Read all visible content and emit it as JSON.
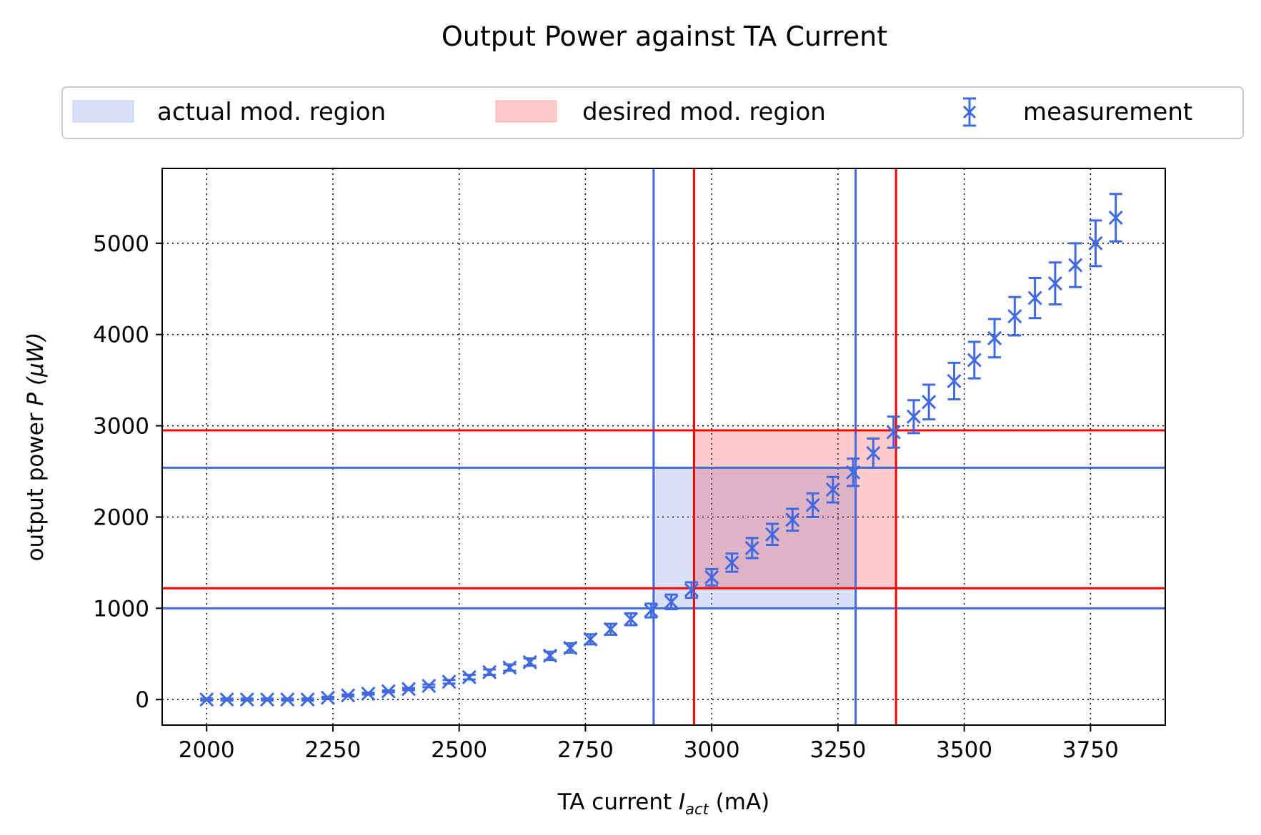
{
  "chart_data": {
    "type": "scatter",
    "title": "Output Power against TA Current",
    "xlabel_main": "TA current ",
    "xlabel_symbol": "I",
    "xlabel_subscript": "act",
    "xlabel_unit": " (mA)",
    "ylabel_main": "output power ",
    "ylabel_symbol": "P",
    "ylabel_unit": "(μW)",
    "xlim": [
      1912,
      3898
    ],
    "ylim": [
      -280,
      5820
    ],
    "xticks": [
      2000,
      2250,
      2500,
      2750,
      3000,
      3250,
      3500,
      3750
    ],
    "yticks": [
      0,
      1000,
      2000,
      3000,
      4000,
      5000
    ],
    "grid": true,
    "grid_style": "dotted",
    "legend_position": "top, above plot",
    "legend": [
      {
        "label": "actual mod. region",
        "kind": "patch",
        "color": "#c6d2f4"
      },
      {
        "label": "desired mod. region",
        "kind": "patch",
        "color": "#ffc4c4"
      },
      {
        "label": "measurement",
        "kind": "errorbar",
        "color": "#4169e1"
      }
    ],
    "regions": [
      {
        "name": "actual mod. region",
        "color": "#4169e1",
        "fill": "#4169e1",
        "fill_opacity": 0.2,
        "x_range": [
          2885,
          3285
        ],
        "y_range": [
          1000,
          2540
        ]
      },
      {
        "name": "desired mod. region",
        "color": "#ff0000",
        "fill": "#ff0000",
        "fill_opacity": 0.2,
        "x_range": [
          2965,
          3365
        ],
        "y_range": [
          1220,
          2950
        ]
      }
    ],
    "series": [
      {
        "name": "measurement",
        "color": "#4169e1",
        "marker": "x",
        "x": [
          2000,
          2040,
          2080,
          2120,
          2160,
          2200,
          2240,
          2280,
          2320,
          2360,
          2400,
          2440,
          2480,
          2520,
          2560,
          2600,
          2640,
          2680,
          2720,
          2760,
          2800,
          2840,
          2880,
          2920,
          2960,
          3000,
          3040,
          3080,
          3120,
          3160,
          3200,
          3240,
          3280,
          3320,
          3360,
          3400,
          3430,
          3480,
          3520,
          3560,
          3600,
          3640,
          3680,
          3720,
          3760,
          3800
        ],
        "y": [
          0,
          0,
          0,
          0,
          0,
          0,
          20,
          45,
          65,
          90,
          115,
          150,
          195,
          245,
          300,
          350,
          410,
          480,
          565,
          660,
          770,
          880,
          975,
          1070,
          1200,
          1340,
          1500,
          1660,
          1810,
          1970,
          2130,
          2300,
          2490,
          2700,
          2930,
          3100,
          3260,
          3490,
          3720,
          3960,
          4200,
          4400,
          4560,
          4760,
          5000,
          5280
        ],
        "yerr": [
          10,
          10,
          10,
          10,
          10,
          10,
          10,
          10,
          10,
          10,
          12,
          15,
          20,
          25,
          30,
          35,
          40,
          45,
          50,
          55,
          60,
          65,
          75,
          80,
          85,
          90,
          100,
          110,
          115,
          120,
          130,
          140,
          150,
          160,
          170,
          180,
          190,
          200,
          200,
          210,
          210,
          220,
          230,
          240,
          250,
          260
        ]
      }
    ]
  }
}
